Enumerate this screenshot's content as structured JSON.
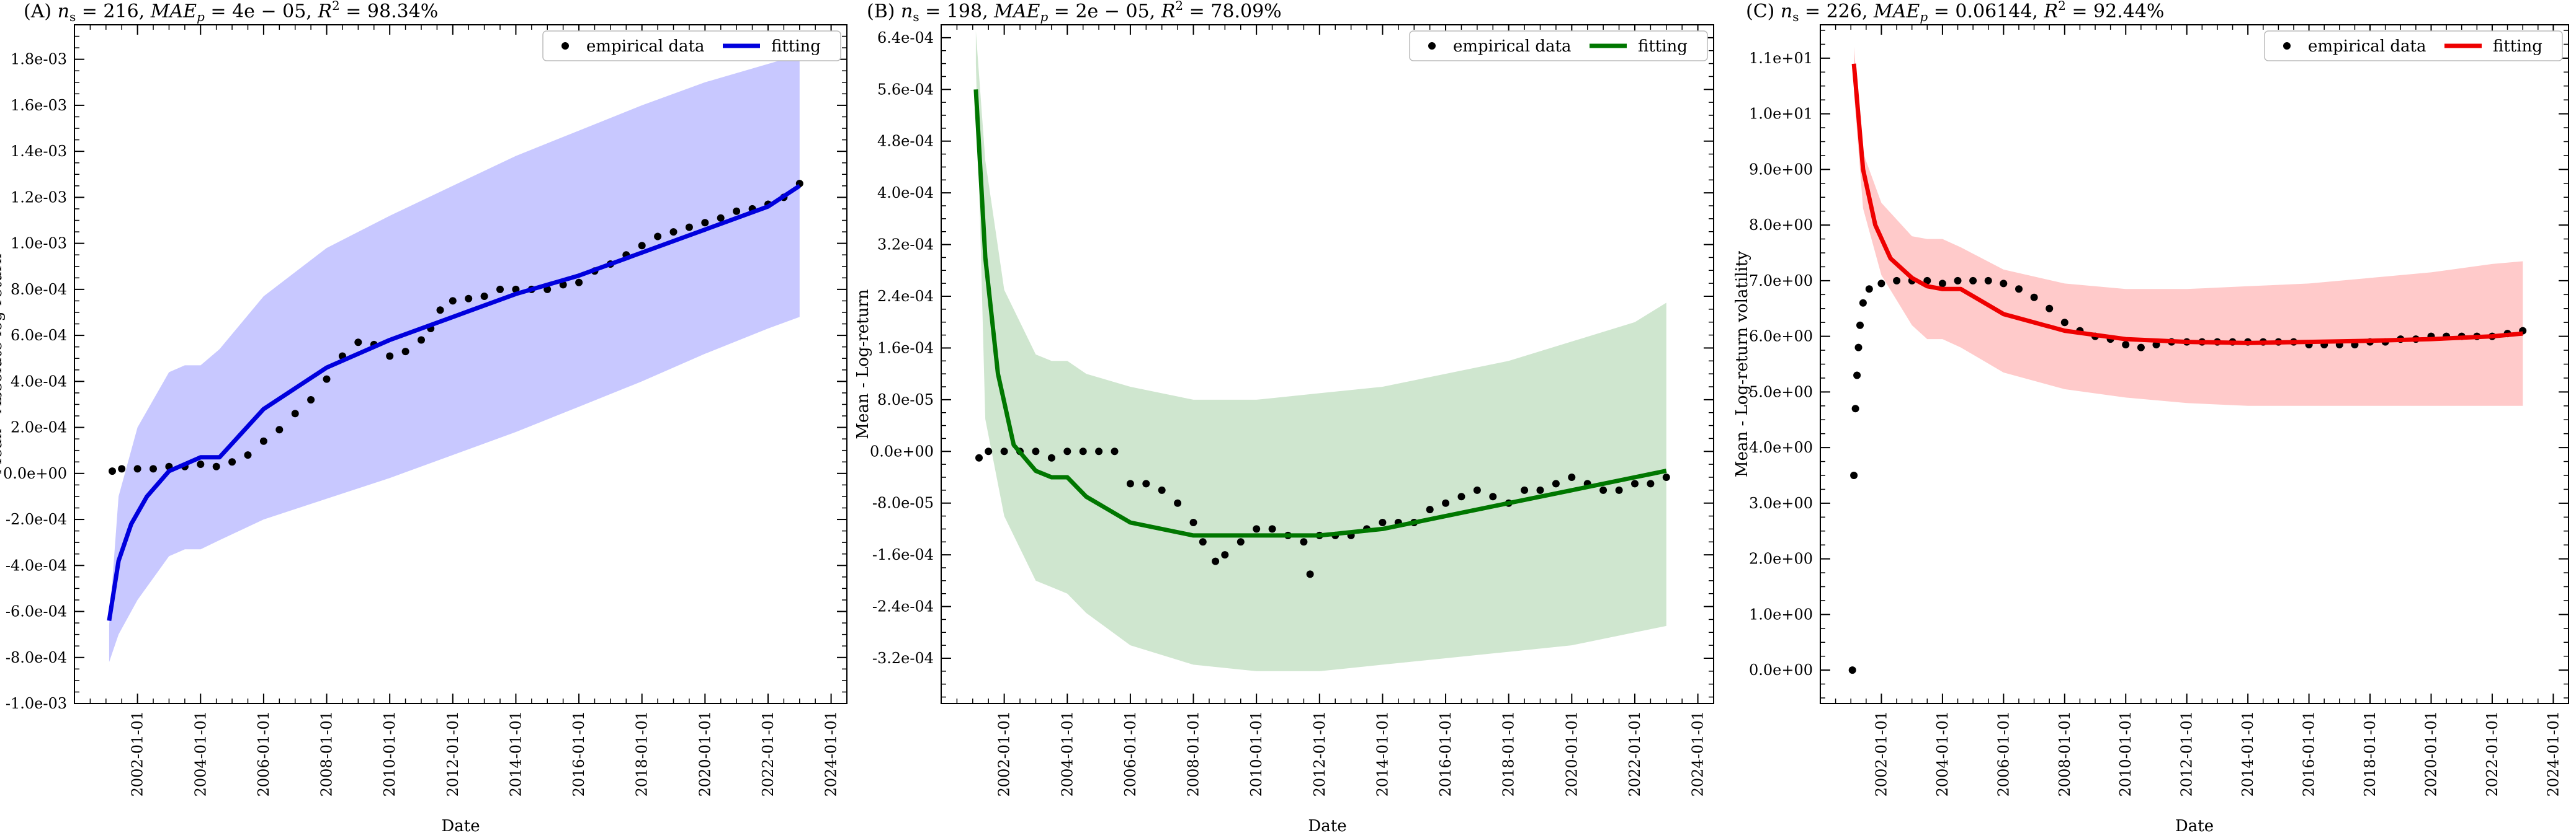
{
  "chart_data": [
    {
      "type": "scatter",
      "id": "A",
      "title": "(A) n_s = 216, MAE_p = 4e−05, R^2 = 98.34%",
      "title_parts": {
        "letter": "(A)",
        "n_s": "216",
        "mae": "4e − 05",
        "r2": "98.34%"
      },
      "xlabel": "Date",
      "ylabel": "Mean - Absolute log-return",
      "xlim": [
        2000.0,
        2024.5
      ],
      "ylim": [
        -0.001,
        0.00195
      ],
      "yticks": [
        -0.001,
        -0.0008,
        -0.0006,
        -0.0004,
        -0.0002,
        0.0,
        0.0002,
        0.0004,
        0.0006,
        0.0008,
        0.001,
        0.0012,
        0.0014,
        0.0016,
        0.0018
      ],
      "ytick_labels": [
        "-1.0e-03",
        "-8.0e-04",
        "-6.0e-04",
        "-4.0e-04",
        "-2.0e-04",
        "0.0e+00",
        "2.0e-04",
        "4.0e-04",
        "6.0e-04",
        "8.0e-04",
        "1.0e-03",
        "1.2e-03",
        "1.4e-03",
        "1.6e-03",
        "1.8e-03"
      ],
      "xticks": [
        2002,
        2004,
        2006,
        2008,
        2010,
        2012,
        2014,
        2016,
        2018,
        2020,
        2022,
        2024
      ],
      "xtick_labels": [
        "2002-01-01",
        "2004-01-01",
        "2006-01-01",
        "2008-01-01",
        "2010-01-01",
        "2012-01-01",
        "2014-01-01",
        "2016-01-01",
        "2018-01-01",
        "2020-01-01",
        "2022-01-01",
        "2024-01-01"
      ],
      "color": "#0000dd",
      "band_color": "#c8c8ff",
      "legend": {
        "placement": "top-right",
        "entries": [
          "empirical data",
          "fitting"
        ]
      },
      "series": [
        {
          "name": "empirical data",
          "kind": "scatter",
          "x": [
            2001.2,
            2001.5,
            2002.0,
            2002.5,
            2003.0,
            2003.5,
            2004.0,
            2004.5,
            2005.0,
            2005.5,
            2006.0,
            2006.5,
            2007.0,
            2007.5,
            2008.0,
            2008.5,
            2009.0,
            2009.5,
            2010.0,
            2010.5,
            2011.0,
            2011.3,
            2011.6,
            2012.0,
            2012.5,
            2013.0,
            2013.5,
            2014.0,
            2014.5,
            2015.0,
            2015.5,
            2016.0,
            2016.5,
            2017.0,
            2017.5,
            2018.0,
            2018.5,
            2019.0,
            2019.5,
            2020.0,
            2020.5,
            2021.0,
            2021.5,
            2022.0,
            2022.5,
            2023.0
          ],
          "y": [
            1e-05,
            2e-05,
            2e-05,
            2e-05,
            3e-05,
            3e-05,
            4e-05,
            3e-05,
            5e-05,
            8e-05,
            0.00014,
            0.00019,
            0.00026,
            0.00032,
            0.00041,
            0.00051,
            0.00057,
            0.00056,
            0.00051,
            0.00053,
            0.00058,
            0.00063,
            0.00071,
            0.00075,
            0.00076,
            0.00077,
            0.0008,
            0.0008,
            0.0008,
            0.0008,
            0.00082,
            0.00083,
            0.00088,
            0.00091,
            0.00095,
            0.00099,
            0.00103,
            0.00105,
            0.00107,
            0.00109,
            0.00111,
            0.00114,
            0.00115,
            0.00117,
            0.0012,
            0.00126
          ]
        },
        {
          "name": "fitting",
          "kind": "line",
          "x": [
            2001.1,
            2001.4,
            2001.8,
            2002.3,
            2003.0,
            2003.5,
            2004.0,
            2004.6,
            2006.0,
            2008.0,
            2010.0,
            2012.0,
            2014.0,
            2016.0,
            2018.0,
            2020.0,
            2022.0,
            2023.0
          ],
          "y": [
            -0.00064,
            -0.00038,
            -0.00022,
            -0.0001,
            1e-05,
            4e-05,
            7e-05,
            7e-05,
            0.00028,
            0.00046,
            0.00058,
            0.00068,
            0.00078,
            0.00086,
            0.00096,
            0.00106,
            0.00116,
            0.00125
          ]
        },
        {
          "name": "band_upper",
          "kind": "band",
          "x": [
            2001.1,
            2001.4,
            2002.0,
            2003.0,
            2003.5,
            2004.0,
            2004.6,
            2006.0,
            2008.0,
            2010.0,
            2012.0,
            2014.0,
            2016.0,
            2018.0,
            2020.0,
            2022.0,
            2023.0
          ],
          "y": [
            -0.00066,
            -0.0001,
            0.0002,
            0.00044,
            0.00047,
            0.00047,
            0.00054,
            0.00077,
            0.00098,
            0.00112,
            0.00125,
            0.00138,
            0.00149,
            0.0016,
            0.0017,
            0.00178,
            0.00182
          ]
        },
        {
          "name": "band_lower",
          "kind": "band",
          "x": [
            2001.1,
            2001.4,
            2002.0,
            2003.0,
            2003.5,
            2004.0,
            2004.6,
            2006.0,
            2008.0,
            2010.0,
            2012.0,
            2014.0,
            2016.0,
            2018.0,
            2020.0,
            2022.0,
            2023.0
          ],
          "y": [
            -0.00082,
            -0.0007,
            -0.00055,
            -0.00036,
            -0.00033,
            -0.00033,
            -0.00029,
            -0.0002,
            -0.00011,
            -2e-05,
            8e-05,
            0.00018,
            0.00029,
            0.0004,
            0.00052,
            0.00063,
            0.00068
          ]
        }
      ]
    },
    {
      "type": "scatter",
      "id": "B",
      "title": "(B) n_s = 198, MAE_p = 2e−05, R^2 = 78.09%",
      "title_parts": {
        "letter": "(B)",
        "n_s": "198",
        "mae": "2e − 05",
        "r2": "78.09%"
      },
      "xlabel": "Date",
      "ylabel": "Mean - Log-return",
      "xlim": [
        2000.0,
        2024.5
      ],
      "ylim": [
        -0.00039,
        0.00066
      ],
      "yticks": [
        -0.00032,
        -0.00024,
        -0.00016,
        -8e-05,
        0.0,
        8e-05,
        0.00016,
        0.00024,
        0.00032,
        0.0004,
        0.00048,
        0.00056,
        0.00064
      ],
      "ytick_labels": [
        "-3.2e-04",
        "-2.4e-04",
        "-1.6e-04",
        "-8.0e-05",
        "0.0e+00",
        "8.0e-05",
        "1.6e-04",
        "2.4e-04",
        "3.2e-04",
        "4.0e-04",
        "4.8e-04",
        "5.6e-04",
        "6.4e-04"
      ],
      "xticks": [
        2002,
        2004,
        2006,
        2008,
        2010,
        2012,
        2014,
        2016,
        2018,
        2020,
        2022,
        2024
      ],
      "xtick_labels": [
        "2002-01-01",
        "2004-01-01",
        "2006-01-01",
        "2008-01-01",
        "2010-01-01",
        "2012-01-01",
        "2014-01-01",
        "2016-01-01",
        "2018-01-01",
        "2020-01-01",
        "2022-01-01",
        "2024-01-01"
      ],
      "color": "#007700",
      "band_color": "#cfe6cf",
      "legend": {
        "placement": "top-right",
        "entries": [
          "empirical data",
          "fitting"
        ]
      },
      "series": [
        {
          "name": "empirical data",
          "kind": "scatter",
          "x": [
            2001.2,
            2001.5,
            2002.0,
            2002.5,
            2003.0,
            2003.5,
            2004.0,
            2004.5,
            2005.0,
            2005.5,
            2006.0,
            2006.5,
            2007.0,
            2007.5,
            2008.0,
            2008.3,
            2008.7,
            2009.0,
            2009.5,
            2010.0,
            2010.5,
            2011.0,
            2011.5,
            2012.0,
            2012.5,
            2013.0,
            2013.5,
            2014.0,
            2014.5,
            2015.0,
            2015.5,
            2016.0,
            2016.5,
            2017.0,
            2017.5,
            2018.0,
            2018.5,
            2019.0,
            2019.5,
            2020.0,
            2020.5,
            2021.0,
            2021.5,
            2022.0,
            2022.5,
            2023.0
          ],
          "y": [
            -1e-05,
            0.0,
            0.0,
            0.0,
            0.0,
            -1e-05,
            0.0,
            0.0,
            0.0,
            0.0,
            -5e-05,
            -5e-05,
            -6e-05,
            -8e-05,
            -0.00011,
            -0.00014,
            -0.00017,
            -0.00016,
            -0.00014,
            -0.00012,
            -0.00012,
            -0.00013,
            -0.00014,
            -0.00013,
            -0.00013,
            -0.00013,
            -0.00012,
            -0.00011,
            -0.00011,
            -0.00011,
            -9e-05,
            -8e-05,
            -7e-05,
            -6e-05,
            -7e-05,
            -8e-05,
            -6e-05,
            -6e-05,
            -5e-05,
            -4e-05,
            -5e-05,
            -6e-05,
            -6e-05,
            -5e-05,
            -5e-05,
            -4e-05
          ]
        },
        {
          "name": "outlier",
          "kind": "scatter",
          "x": [
            2011.7
          ],
          "y": [
            -0.00019
          ]
        },
        {
          "name": "fitting",
          "kind": "line",
          "x": [
            2001.1,
            2001.4,
            2001.8,
            2002.3,
            2003.0,
            2003.5,
            2004.0,
            2004.6,
            2006.0,
            2008.0,
            2010.0,
            2012.0,
            2014.0,
            2016.0,
            2018.0,
            2020.0,
            2022.0,
            2023.0
          ],
          "y": [
            0.00056,
            0.0003,
            0.00012,
            1e-05,
            -3e-05,
            -4e-05,
            -4e-05,
            -7e-05,
            -0.00011,
            -0.00013,
            -0.00013,
            -0.00013,
            -0.00012,
            -0.0001,
            -8e-05,
            -6e-05,
            -4e-05,
            -3e-05
          ]
        },
        {
          "name": "band_upper",
          "kind": "band",
          "x": [
            2001.1,
            2001.4,
            2002.0,
            2003.0,
            2003.5,
            2004.0,
            2004.6,
            2006.0,
            2008.0,
            2010.0,
            2012.0,
            2014.0,
            2016.0,
            2018.0,
            2020.0,
            2022.0,
            2023.0
          ],
          "y": [
            0.00065,
            0.00045,
            0.00025,
            0.00015,
            0.00014,
            0.00014,
            0.00012,
            0.0001,
            8e-05,
            8e-05,
            9e-05,
            0.0001,
            0.00012,
            0.00014,
            0.00017,
            0.0002,
            0.00023
          ]
        },
        {
          "name": "band_lower",
          "kind": "band",
          "x": [
            2001.1,
            2001.4,
            2002.0,
            2003.0,
            2003.5,
            2004.0,
            2004.6,
            2006.0,
            2008.0,
            2010.0,
            2012.0,
            2014.0,
            2016.0,
            2018.0,
            2020.0,
            2022.0,
            2023.0
          ],
          "y": [
            0.0006,
            5e-05,
            -0.0001,
            -0.0002,
            -0.00021,
            -0.00022,
            -0.00025,
            -0.0003,
            -0.00033,
            -0.00034,
            -0.00034,
            -0.00033,
            -0.00032,
            -0.00031,
            -0.0003,
            -0.00028,
            -0.00027
          ]
        }
      ]
    },
    {
      "type": "scatter",
      "id": "C",
      "title": "(C) n_s = 226, MAE_p = 0.06144, R^2 = 92.44%",
      "title_parts": {
        "letter": "(C)",
        "n_s": "226",
        "mae": "0.06144",
        "r2": "92.44%"
      },
      "xlabel": "Date",
      "ylabel": "Mean - Log-return volatility",
      "xlim": [
        2000.0,
        2024.5
      ],
      "ylim": [
        -0.6,
        11.6
      ],
      "yticks": [
        0,
        1,
        2,
        3,
        4,
        5,
        6,
        7,
        8,
        9,
        10,
        11
      ],
      "ytick_labels": [
        "0.0e+00",
        "1.0e+00",
        "2.0e+00",
        "3.0e+00",
        "4.0e+00",
        "5.0e+00",
        "6.0e+00",
        "7.0e+00",
        "8.0e+00",
        "9.0e+00",
        "1.0e+01",
        "1.1e+01"
      ],
      "xticks": [
        2002,
        2004,
        2006,
        2008,
        2010,
        2012,
        2014,
        2016,
        2018,
        2020,
        2022,
        2024
      ],
      "xtick_labels": [
        "2002-01-01",
        "2004-01-01",
        "2006-01-01",
        "2008-01-01",
        "2010-01-01",
        "2012-01-01",
        "2014-01-01",
        "2016-01-01",
        "2018-01-01",
        "2020-01-01",
        "2022-01-01",
        "2024-01-01"
      ],
      "color": "#ee0000",
      "band_color": "#ffcaca",
      "legend": {
        "placement": "top-right",
        "entries": [
          "empirical data",
          "fitting"
        ]
      },
      "series": [
        {
          "name": "empirical data",
          "kind": "scatter",
          "x": [
            2001.05,
            2001.1,
            2001.15,
            2001.2,
            2001.25,
            2001.3,
            2001.4,
            2001.6,
            2002.0,
            2002.5,
            2003.0,
            2003.5,
            2004.0,
            2004.5,
            2005.0,
            2005.5,
            2006.0,
            2006.5,
            2007.0,
            2007.5,
            2008.0,
            2008.5,
            2009.0,
            2009.5,
            2010.0,
            2010.5,
            2011.0,
            2011.5,
            2012.0,
            2012.5,
            2013.0,
            2013.5,
            2014.0,
            2014.5,
            2015.0,
            2015.5,
            2016.0,
            2016.5,
            2017.0,
            2017.5,
            2018.0,
            2018.5,
            2019.0,
            2019.5,
            2020.0,
            2020.5,
            2021.0,
            2021.5,
            2022.0,
            2022.5,
            2023.0
          ],
          "y": [
            0.0,
            3.5,
            4.7,
            5.3,
            5.8,
            6.2,
            6.6,
            6.85,
            6.95,
            7.0,
            7.0,
            7.0,
            6.95,
            7.0,
            7.0,
            7.0,
            6.95,
            6.85,
            6.7,
            6.5,
            6.25,
            6.1,
            6.0,
            5.95,
            5.85,
            5.8,
            5.85,
            5.9,
            5.9,
            5.9,
            5.9,
            5.9,
            5.9,
            5.9,
            5.9,
            5.9,
            5.85,
            5.85,
            5.85,
            5.85,
            5.9,
            5.9,
            5.95,
            5.95,
            6.0,
            6.0,
            6.0,
            6.0,
            6.0,
            6.05,
            6.1
          ]
        },
        {
          "name": "fitting",
          "kind": "line",
          "x": [
            2001.1,
            2001.4,
            2001.8,
            2002.3,
            2003.0,
            2003.5,
            2004.0,
            2004.6,
            2006.0,
            2008.0,
            2010.0,
            2012.0,
            2014.0,
            2016.0,
            2018.0,
            2020.0,
            2022.0,
            2023.0
          ],
          "y": [
            10.9,
            9.0,
            8.0,
            7.4,
            7.05,
            6.9,
            6.85,
            6.85,
            6.4,
            6.1,
            5.95,
            5.9,
            5.88,
            5.9,
            5.92,
            5.95,
            6.0,
            6.05
          ]
        },
        {
          "name": "band_upper",
          "kind": "band",
          "x": [
            2001.1,
            2001.4,
            2002.0,
            2003.0,
            2003.5,
            2004.0,
            2004.6,
            2006.0,
            2008.0,
            2010.0,
            2012.0,
            2014.0,
            2016.0,
            2018.0,
            2020.0,
            2022.0,
            2023.0
          ],
          "y": [
            11.2,
            9.3,
            8.4,
            7.8,
            7.75,
            7.75,
            7.6,
            7.2,
            6.95,
            6.85,
            6.85,
            6.9,
            6.95,
            7.05,
            7.15,
            7.3,
            7.35
          ]
        },
        {
          "name": "band_lower",
          "kind": "band",
          "x": [
            2001.1,
            2001.4,
            2002.0,
            2003.0,
            2003.5,
            2004.0,
            2004.6,
            2006.0,
            2008.0,
            2010.0,
            2012.0,
            2014.0,
            2016.0,
            2018.0,
            2020.0,
            2022.0,
            2023.0
          ],
          "y": [
            10.4,
            8.3,
            7.1,
            6.2,
            5.95,
            5.95,
            5.8,
            5.35,
            5.05,
            4.9,
            4.8,
            4.75,
            4.75,
            4.75,
            4.75,
            4.75,
            4.75
          ]
        }
      ]
    }
  ]
}
